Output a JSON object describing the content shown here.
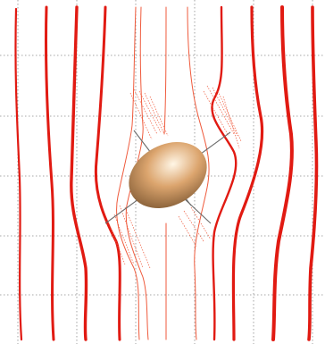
{
  "figure": {
    "colors": {
      "background": "#ffffff",
      "grid": "#8a8a8a",
      "streamline": "#e11a12",
      "streamline_light": "#ef5a3c",
      "axis": "#6b6b6b",
      "ellipsoid_light": "#fff6e6",
      "ellipsoid_mid": "#dca56e",
      "ellipsoid_dark": "#7a5530"
    },
    "streamline_count": 10,
    "gridline_count": 11
  }
}
